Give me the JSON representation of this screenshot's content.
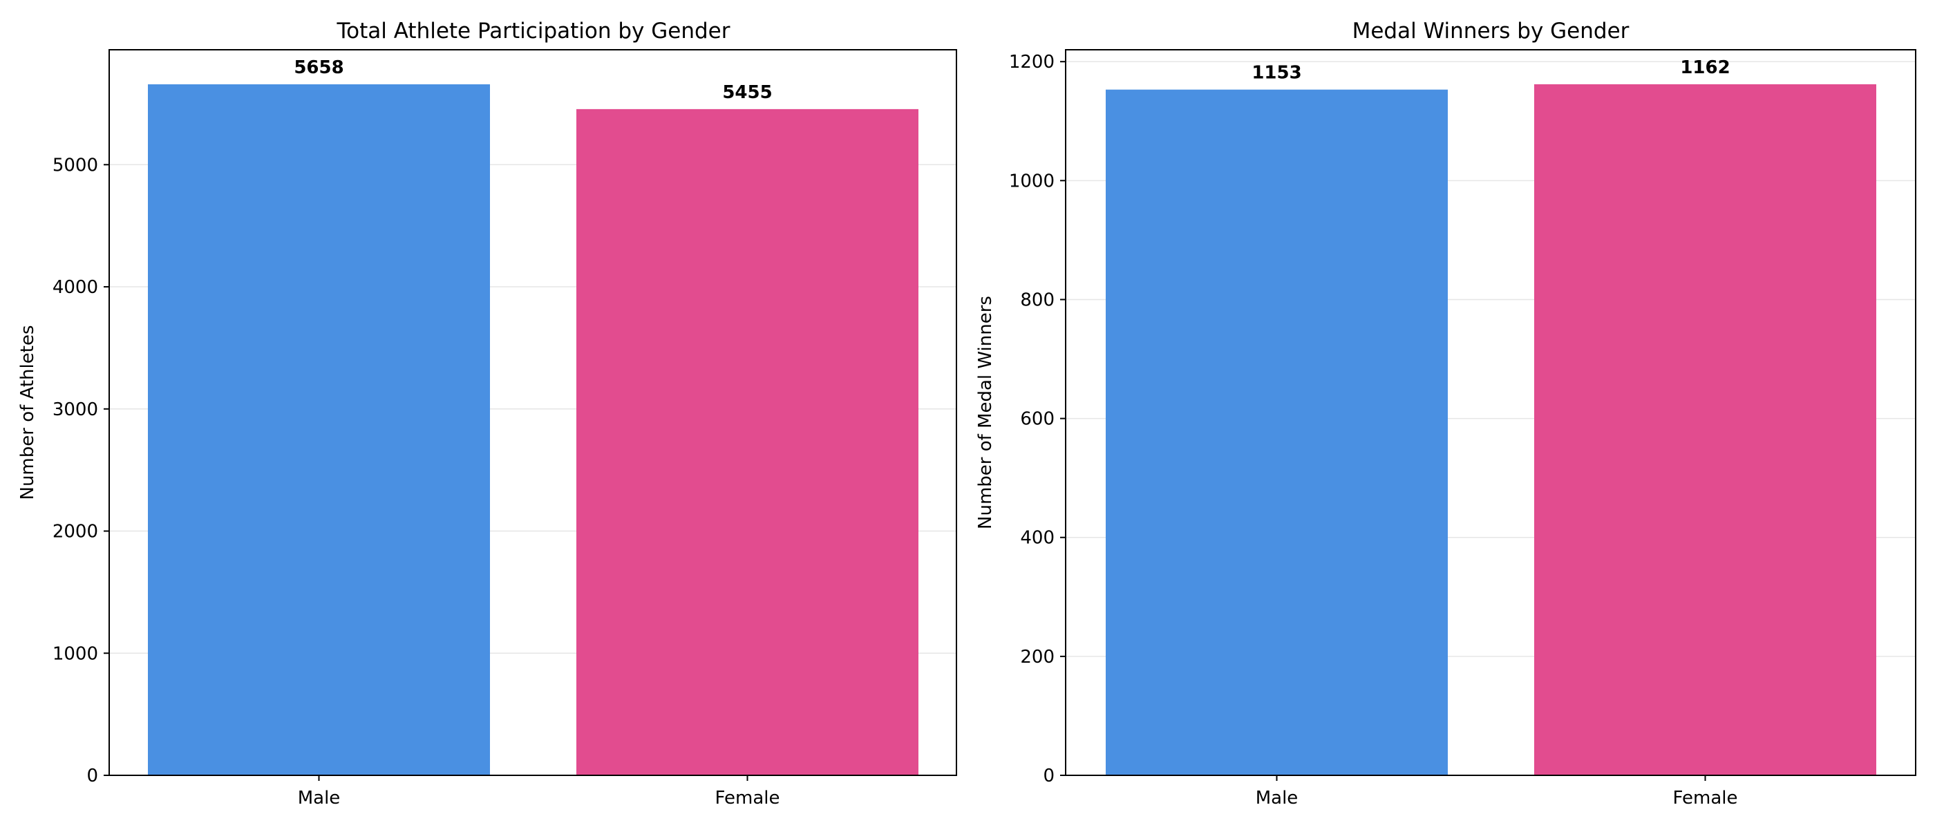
{
  "colors": {
    "male": "#4a90e2",
    "female": "#e24c8f",
    "grid": "#e6e6e6",
    "frame": "#000000"
  },
  "chart_data": [
    {
      "type": "bar",
      "title": "Total Athlete Participation by Gender",
      "xlabel": "",
      "ylabel": "Number of Athletes",
      "categories": [
        "Male",
        "Female"
      ],
      "values": [
        5658,
        5455
      ],
      "value_labels": [
        "5658",
        "5455"
      ],
      "ylim": [
        0,
        5941
      ],
      "yticks": [
        0,
        1000,
        2000,
        3000,
        4000,
        5000
      ],
      "ytick_labels": [
        "0",
        "1000",
        "2000",
        "3000",
        "4000",
        "5000"
      ],
      "grid": true
    },
    {
      "type": "bar",
      "title": "Medal Winners by Gender",
      "xlabel": "",
      "ylabel": "Number of Medal Winners",
      "categories": [
        "Male",
        "Female"
      ],
      "values": [
        1153,
        1162
      ],
      "value_labels": [
        "1153",
        "1162"
      ],
      "ylim": [
        0,
        1220
      ],
      "yticks": [
        0,
        200,
        400,
        600,
        800,
        1000,
        1200
      ],
      "ytick_labels": [
        "0",
        "200",
        "400",
        "600",
        "800",
        "1000",
        "1200"
      ],
      "grid": true
    }
  ]
}
